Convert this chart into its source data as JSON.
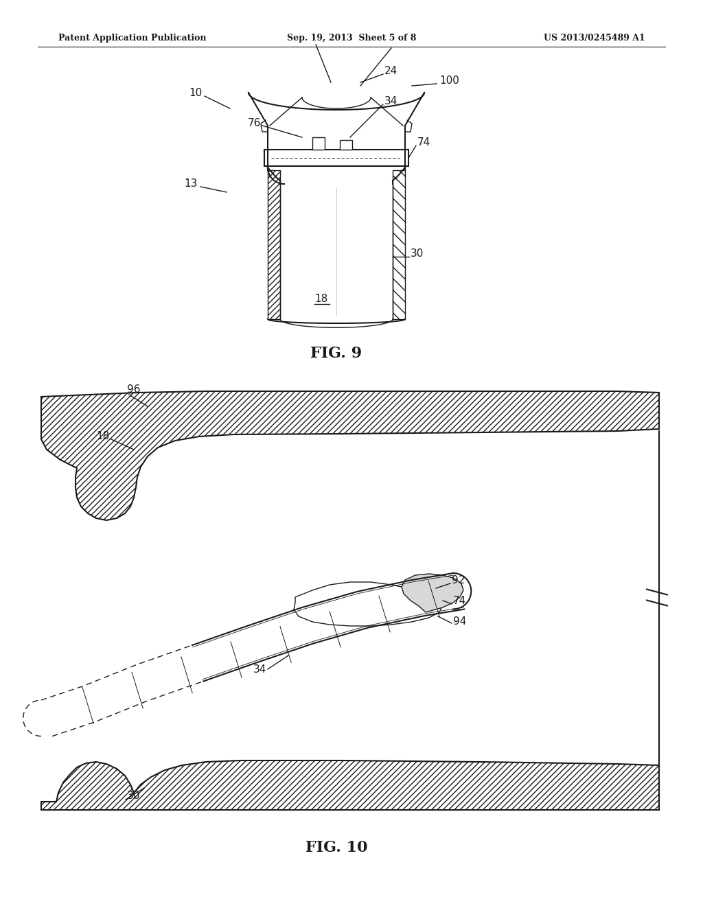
{
  "bg_color": "#ffffff",
  "line_color": "#1a1a1a",
  "header_left": "Patent Application Publication",
  "header_center": "Sep. 19, 2013  Sheet 5 of 8",
  "header_right": "US 2013/0245489 A1",
  "fig9_label": "FIG. 9",
  "fig10_label": "FIG. 10"
}
